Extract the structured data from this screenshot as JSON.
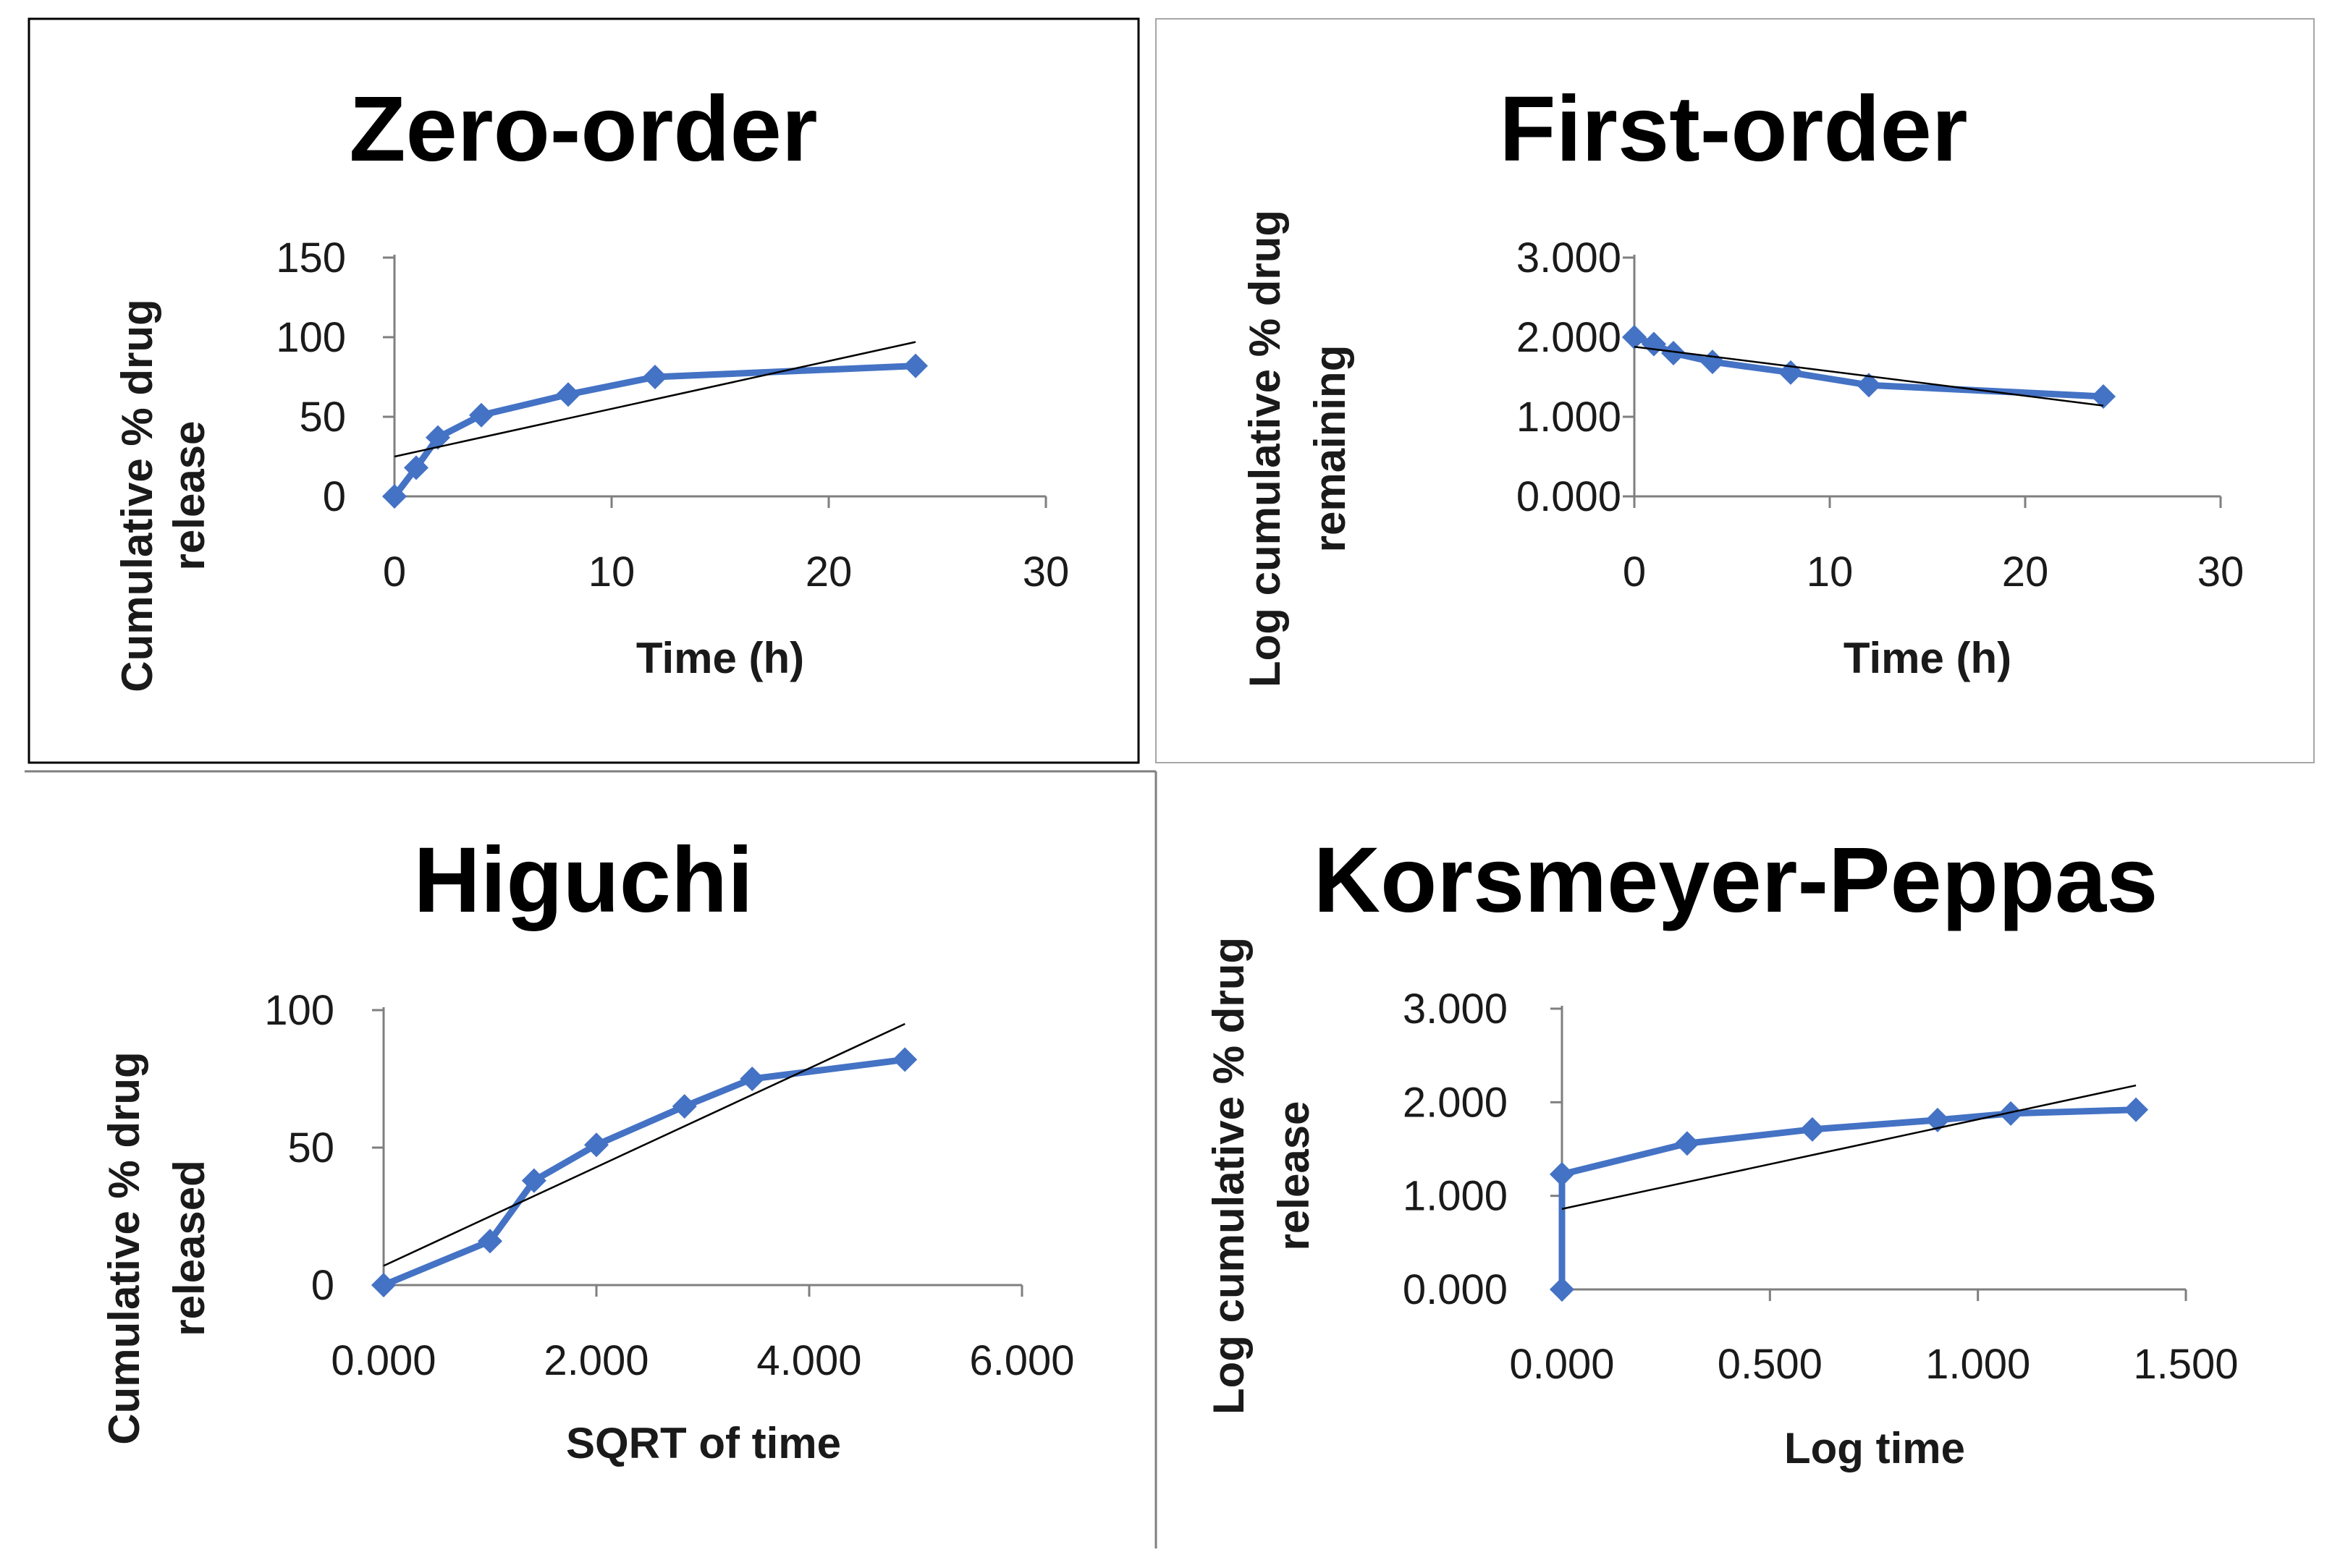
{
  "chart_data": [
    {
      "type": "line",
      "title": "Zero-order",
      "xlabel": "Time (h)",
      "ylabel_lines": [
        "Cumulative % drug",
        "release"
      ],
      "xlim": [
        0,
        30
      ],
      "ylim": [
        0,
        150
      ],
      "x_ticks": [
        0,
        10,
        20,
        30
      ],
      "y_ticks": [
        0,
        50,
        100,
        150
      ],
      "tick_decimals": 0,
      "frame": true,
      "series": [
        {
          "x": [
            0,
            1,
            2,
            4,
            8,
            12,
            24
          ],
          "values": [
            0,
            18,
            37,
            51,
            64,
            75,
            82
          ]
        }
      ],
      "trendline": {
        "x": [
          0,
          24
        ],
        "values": [
          25,
          97
        ]
      }
    },
    {
      "type": "line",
      "title": "First-order",
      "xlabel": "Time (h)",
      "ylabel_lines": [
        "Log cumulative % drug",
        "remaining"
      ],
      "xlim": [
        0,
        30
      ],
      "ylim": [
        0,
        3
      ],
      "x_ticks": [
        0,
        10,
        20,
        30
      ],
      "y_ticks": [
        0,
        1,
        2,
        3
      ],
      "x_tick_decimals": 0,
      "y_tick_decimals": 3,
      "frame": true,
      "series": [
        {
          "x": [
            0,
            1,
            2,
            4,
            8,
            12,
            24
          ],
          "values": [
            2.0,
            1.914,
            1.8,
            1.69,
            1.556,
            1.398,
            1.255
          ]
        }
      ],
      "trendline": {
        "x": [
          0,
          24
        ],
        "values": [
          1.88,
          1.14
        ]
      }
    },
    {
      "type": "line",
      "title": "Higuchi",
      "xlabel": "SQRT of time",
      "ylabel_lines": [
        "Cumulative % drug",
        "released"
      ],
      "xlim": [
        0,
        6
      ],
      "ylim": [
        0,
        100
      ],
      "x_ticks": [
        0,
        2,
        4,
        6
      ],
      "y_ticks": [
        0,
        50,
        100
      ],
      "x_tick_decimals": 3,
      "y_tick_decimals": 0,
      "frame": false,
      "series": [
        {
          "x": [
            0,
            1,
            1.414,
            2,
            2.828,
            3.464,
            4.899
          ],
          "values": [
            0,
            16,
            38,
            51,
            65,
            75,
            82
          ]
        }
      ],
      "trendline": {
        "x": [
          0,
          4.9
        ],
        "values": [
          7,
          95
        ]
      }
    },
    {
      "type": "line",
      "title": "Korsmeyer-Peppas",
      "xlabel": "Log time",
      "ylabel_lines": [
        "Log cumulative % drug",
        "release"
      ],
      "xlim": [
        0,
        1.5
      ],
      "ylim": [
        0,
        3
      ],
      "x_ticks": [
        0,
        0.5,
        1.0,
        1.5
      ],
      "y_ticks": [
        0,
        1,
        2,
        3
      ],
      "x_tick_decimals": 3,
      "y_tick_decimals": 3,
      "frame": false,
      "series": [
        {
          "x": [
            0,
            0,
            0.301,
            0.602,
            0.903,
            1.079,
            1.38
          ],
          "values": [
            0,
            1.23,
            1.56,
            1.71,
            1.81,
            1.88,
            1.92
          ]
        }
      ],
      "trendline": {
        "x": [
          0,
          1.38
        ],
        "values": [
          0.86,
          2.18
        ]
      }
    }
  ],
  "style": {
    "series_color": "#4472C4",
    "trendline_color": "#000000",
    "axis_color": "#7f7f7f"
  }
}
